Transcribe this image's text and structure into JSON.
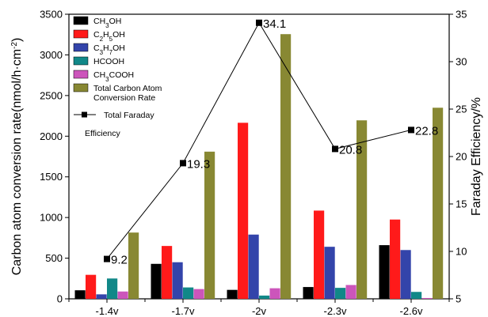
{
  "chart_data": {
    "type": "bar",
    "categories": [
      "-1.4v",
      "-1.7v",
      "-2v",
      "-2.3v",
      "-2.6v"
    ],
    "series": [
      {
        "name": "CH3OH",
        "name_sub": {
          "pre": "CH",
          "sub": "3",
          "post": "OH"
        },
        "color": "#000000",
        "values": [
          105,
          430,
          110,
          145,
          660
        ]
      },
      {
        "name": "C2H5OH",
        "name_sub": {
          "pre": "C",
          "sub": "2",
          "mid": "H",
          "sub2": "5",
          "post": "OH"
        },
        "color": "#ff1a1a",
        "values": [
          295,
          650,
          2165,
          1085,
          975
        ]
      },
      {
        "name": "C3H7OH",
        "name_sub": {
          "pre": "C",
          "sub": "3",
          "mid": "H",
          "sub2": "7",
          "post": "OH"
        },
        "color": "#3344aa",
        "values": [
          55,
          450,
          790,
          640,
          600
        ]
      },
      {
        "name": "HCOOH",
        "color": "#118888",
        "values": [
          250,
          140,
          40,
          135,
          85
        ]
      },
      {
        "name": "CH3COOH",
        "name_sub": {
          "pre": "CH",
          "sub": "3",
          "post": "COOH"
        },
        "color": "#cc55bb",
        "values": [
          90,
          120,
          130,
          170,
          10
        ]
      },
      {
        "name": "Total Carbon Atom Conversion Rate",
        "name_lines": [
          "Total Carbon Atom",
          "Conversion Rate"
        ],
        "color": "#888833",
        "values": [
          815,
          1810,
          3255,
          2195,
          2350
        ]
      }
    ],
    "line_series": {
      "name": "Total Faraday Efficiency",
      "name_lines": [
        "Total Faraday",
        "Efficiency"
      ],
      "color": "#000000",
      "values": [
        9.2,
        19.3,
        34.1,
        20.8,
        22.8
      ],
      "labels": [
        "9.2",
        "19.3",
        "34.1",
        "20.8",
        "22.8"
      ]
    },
    "ylabel": "Carbon atom conversion rate(nmol/h·cm⁻²)",
    "ylabel_parts": {
      "pre": "Carbon atom conversion rate(nmol/h",
      "dot": "·",
      "mid": "cm",
      "sup": "-2",
      "post": ")"
    },
    "y2label": "Faraday Efficiency/%",
    "ylim": [
      0,
      3500
    ],
    "yticks": [
      0,
      500,
      1000,
      1500,
      2000,
      2500,
      3000,
      3500
    ],
    "y2lim": [
      5,
      35
    ],
    "y2ticks": [
      5,
      10,
      15,
      20,
      25,
      30,
      35
    ],
    "legend_position": "top-left",
    "grid": false
  }
}
